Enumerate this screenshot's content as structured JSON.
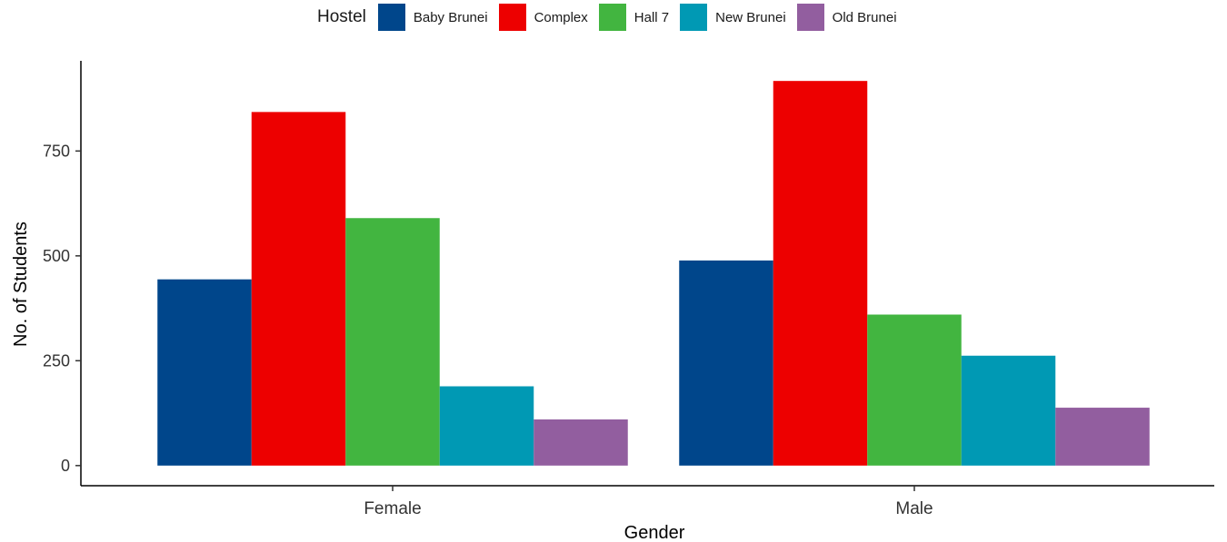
{
  "chart_data": {
    "type": "bar",
    "categories": [
      "Female",
      "Male"
    ],
    "series": [
      {
        "name": "Baby Brunei",
        "values": [
          444,
          489
        ],
        "color": "#00468B"
      },
      {
        "name": "Complex",
        "values": [
          843,
          917
        ],
        "color": "#ED0000"
      },
      {
        "name": "Hall 7",
        "values": [
          590,
          360
        ],
        "color": "#42B540"
      },
      {
        "name": "New Brunei",
        "values": [
          189,
          262
        ],
        "color": "#0099B4"
      },
      {
        "name": "Old Brunei",
        "values": [
          110,
          138
        ],
        "color": "#925E9F"
      }
    ],
    "xlabel": "Gender",
    "ylabel": "No. of Students",
    "yticks": [
      0,
      250,
      500,
      750
    ],
    "ylim": [
      -48,
      965
    ],
    "grid": false,
    "legend": {
      "title": "Hostel",
      "position": "top"
    }
  }
}
